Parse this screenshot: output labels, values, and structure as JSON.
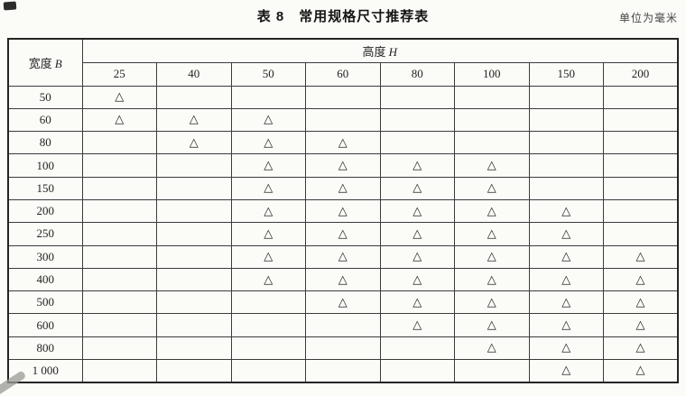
{
  "page": {
    "title": "表 8　常用规格尺寸推荐表",
    "unit_note": "单位为毫米"
  },
  "table": {
    "corner_header": {
      "label": "宽度",
      "symbol": "B"
    },
    "column_group_header": {
      "label": "高度",
      "symbol": "H"
    },
    "height_columns": [
      "25",
      "40",
      "50",
      "60",
      "80",
      "100",
      "150",
      "200"
    ],
    "mark_symbol": "△",
    "rows": [
      {
        "width": "50",
        "marks": [
          1,
          0,
          0,
          0,
          0,
          0,
          0,
          0
        ]
      },
      {
        "width": "60",
        "marks": [
          1,
          1,
          1,
          0,
          0,
          0,
          0,
          0
        ]
      },
      {
        "width": "80",
        "marks": [
          0,
          1,
          1,
          1,
          0,
          0,
          0,
          0
        ]
      },
      {
        "width": "100",
        "marks": [
          0,
          0,
          1,
          1,
          1,
          1,
          0,
          0
        ]
      },
      {
        "width": "150",
        "marks": [
          0,
          0,
          1,
          1,
          1,
          1,
          0,
          0
        ]
      },
      {
        "width": "200",
        "marks": [
          0,
          0,
          1,
          1,
          1,
          1,
          1,
          0
        ]
      },
      {
        "width": "250",
        "marks": [
          0,
          0,
          1,
          1,
          1,
          1,
          1,
          0
        ]
      },
      {
        "width": "300",
        "marks": [
          0,
          0,
          1,
          1,
          1,
          1,
          1,
          1
        ]
      },
      {
        "width": "400",
        "marks": [
          0,
          0,
          1,
          1,
          1,
          1,
          1,
          1
        ]
      },
      {
        "width": "500",
        "marks": [
          0,
          0,
          0,
          1,
          1,
          1,
          1,
          1
        ]
      },
      {
        "width": "600",
        "marks": [
          0,
          0,
          0,
          0,
          1,
          1,
          1,
          1
        ]
      },
      {
        "width": "800",
        "marks": [
          0,
          0,
          0,
          0,
          0,
          1,
          1,
          1
        ]
      },
      {
        "width": "1 000",
        "marks": [
          0,
          0,
          0,
          0,
          0,
          0,
          1,
          1
        ]
      }
    ]
  },
  "colors": {
    "background": "#fbfbf8",
    "grid_line": "#3c3c3c",
    "outer_border": "#242424",
    "text": "#232323",
    "triangle": "#6f6f6f"
  }
}
